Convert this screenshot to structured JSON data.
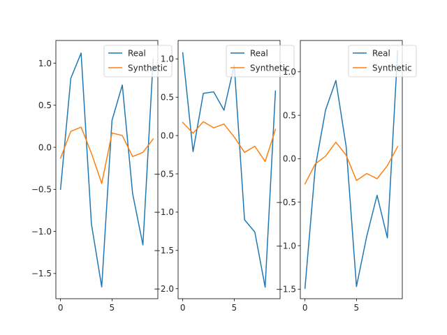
{
  "chart_data": [
    {
      "type": "line",
      "x": [
        0,
        1,
        2,
        3,
        4,
        5,
        6,
        7,
        8,
        9
      ],
      "xlim": [
        -0.45,
        9.45
      ],
      "ylim": [
        -1.8,
        1.27
      ],
      "xticks": [
        0,
        5
      ],
      "yticks": [
        -1.5,
        -1.0,
        -0.5,
        0.0,
        0.5,
        1.0
      ],
      "ytick_labels": [
        "−1.5",
        "−1.0",
        "−0.5",
        "0.0",
        "0.5",
        "1.0"
      ],
      "legend_position": "upper-right",
      "series": [
        {
          "name": "Real",
          "color": "#1f77b4",
          "values": [
            -0.5,
            0.82,
            1.12,
            -0.91,
            -1.66,
            0.32,
            0.74,
            -0.55,
            -1.16,
            1.05
          ]
        },
        {
          "name": "Synthetic",
          "color": "#ff7f0e",
          "values": [
            -0.13,
            0.19,
            0.24,
            -0.07,
            -0.43,
            0.17,
            0.14,
            -0.11,
            -0.06,
            0.1
          ]
        }
      ]
    },
    {
      "type": "line",
      "x": [
        0,
        1,
        2,
        3,
        4,
        5,
        6,
        7,
        8,
        9
      ],
      "xlim": [
        -0.45,
        9.45
      ],
      "ylim": [
        -2.13,
        1.24
      ],
      "xticks": [
        0,
        5
      ],
      "yticks": [
        -2.0,
        -1.5,
        -1.0,
        -0.5,
        0.0,
        0.5,
        1.0
      ],
      "ytick_labels": [
        "−2.0",
        "−1.5",
        "−1.0",
        "−0.5",
        "0.0",
        "0.5",
        "1.0"
      ],
      "legend_position": "upper-right",
      "series": [
        {
          "name": "Real",
          "color": "#1f77b4",
          "values": [
            1.08,
            -0.21,
            0.55,
            0.57,
            0.33,
            0.92,
            -1.1,
            -1.26,
            -1.98,
            0.58
          ]
        },
        {
          "name": "Synthetic",
          "color": "#ff7f0e",
          "values": [
            0.17,
            0.03,
            0.18,
            0.1,
            0.15,
            -0.02,
            -0.22,
            -0.14,
            -0.34,
            0.08
          ]
        }
      ]
    },
    {
      "type": "line",
      "x": [
        0,
        1,
        2,
        3,
        4,
        5,
        6,
        7,
        8,
        9
      ],
      "xlim": [
        -0.45,
        9.45
      ],
      "ylim": [
        -1.61,
        1.36
      ],
      "xticks": [
        0,
        5
      ],
      "yticks": [
        -1.5,
        -1.0,
        -0.5,
        0.0,
        0.5,
        1.0
      ],
      "ytick_labels": [
        "−1.5",
        "−1.0",
        "−0.5",
        "0.0",
        "0.5",
        "1.0"
      ],
      "legend_position": "upper-right",
      "series": [
        {
          "name": "Real",
          "color": "#1f77b4",
          "values": [
            -1.49,
            -0.1,
            0.56,
            0.9,
            0.14,
            -1.47,
            -0.89,
            -0.42,
            -0.91,
            1.24
          ]
        },
        {
          "name": "Synthetic",
          "color": "#ff7f0e",
          "values": [
            -0.29,
            -0.06,
            0.03,
            0.19,
            0.04,
            -0.25,
            -0.17,
            -0.23,
            -0.08,
            0.14
          ]
        }
      ]
    }
  ]
}
